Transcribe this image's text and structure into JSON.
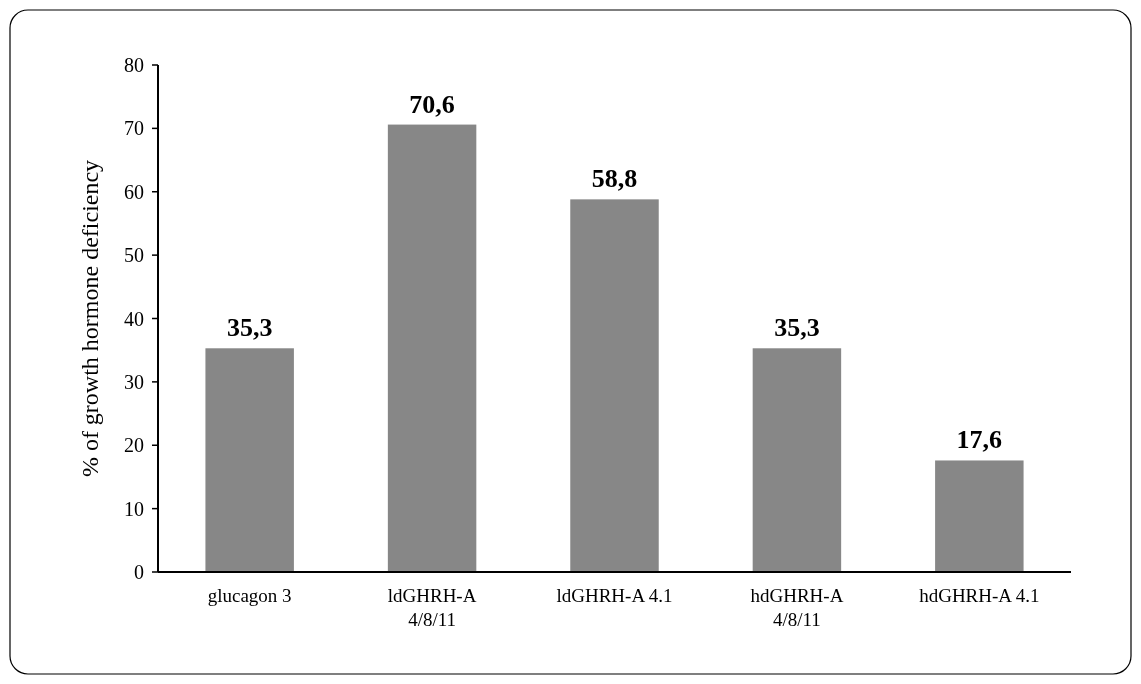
{
  "chart_data": {
    "type": "bar",
    "ylabel": "% of growth hormone deficiency",
    "categories": [
      "glucagon 3",
      "ldGHRH-A 4/8/11",
      "ldGHRH-A 4.1",
      "hdGHRH-A 4/8/11",
      "hdGHRH-A 4.1"
    ],
    "values": [
      35.3,
      70.6,
      58.8,
      35.3,
      17.6
    ],
    "value_labels": [
      "35,3",
      "70,6",
      "58,8",
      "35,3",
      "17,6"
    ],
    "color": "#878787",
    "ylim": [
      0,
      80
    ],
    "yticks": [
      0,
      10,
      20,
      30,
      40,
      50,
      60,
      70,
      80
    ],
    "grid": false
  }
}
